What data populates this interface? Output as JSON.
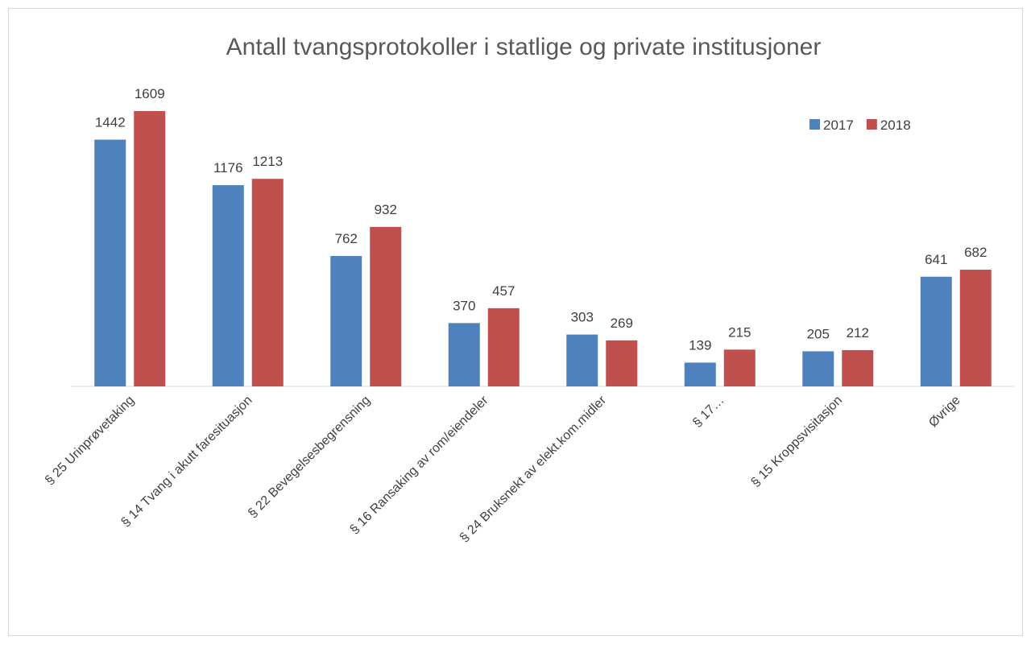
{
  "chart_data": {
    "type": "bar",
    "title": "Antall tvangsprotokoller i statlige og private institusjoner",
    "categories": [
      "§ 25 Urinprøvetaking",
      "§ 14 Tvang i akutt faresituasjon",
      "§ 22 Bevegelsesbegrensning",
      "§ 16 Ransaking av rom/eiendeler",
      "§ 24 Bruksnekt av elekt.kom.midler",
      "§ 17…",
      "§ 15 Kroppsvisitasjon",
      "Øvrige"
    ],
    "series": [
      {
        "name": "2017",
        "color": "#4f81bd",
        "values": [
          1442,
          1176,
          762,
          370,
          303,
          139,
          205,
          641
        ]
      },
      {
        "name": "2018",
        "color": "#c0504d",
        "values": [
          1609,
          1213,
          932,
          457,
          269,
          215,
          212,
          682
        ]
      }
    ],
    "legend": "top-right"
  }
}
